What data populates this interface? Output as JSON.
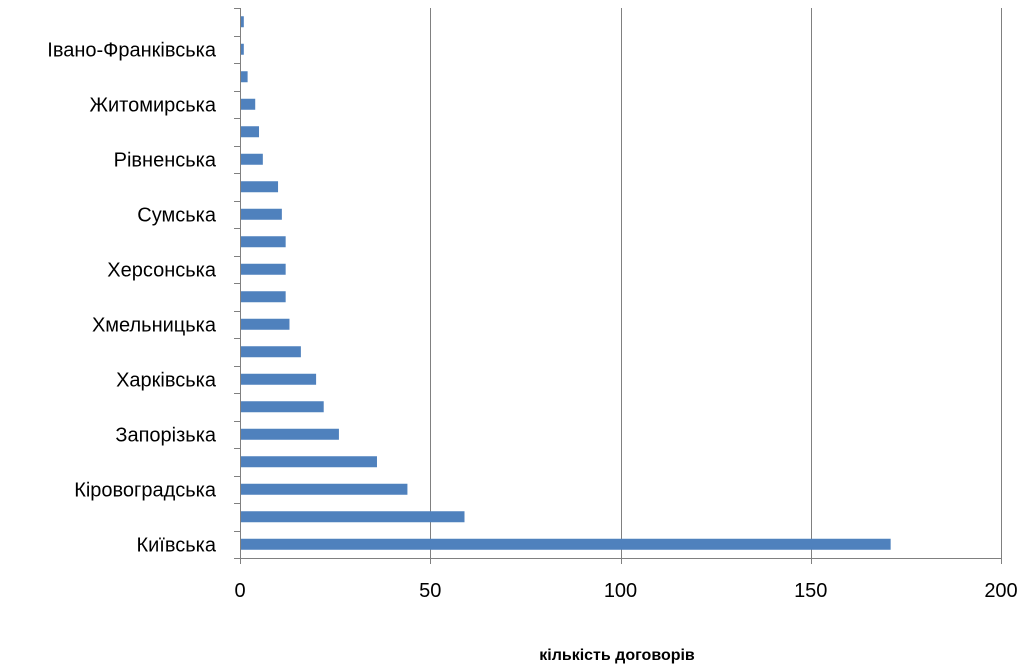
{
  "chart_data": {
    "type": "bar",
    "orientation": "horizontal",
    "categories": [
      "Київська",
      "",
      "Кіровоградська",
      "",
      "Запорізька",
      "",
      "Харківська",
      "",
      "Хмельницька",
      "",
      "Херсонська",
      "",
      "Сумська",
      "",
      "Рівненська",
      "",
      "Житомирська",
      "",
      "Івано-Франківська",
      ""
    ],
    "values": [
      171,
      59,
      44,
      36,
      26,
      22,
      20,
      16,
      13,
      12,
      12,
      12,
      11,
      10,
      6,
      5,
      4,
      2,
      1,
      1
    ],
    "xlabel": "кількість договорів",
    "ylabel": "",
    "xlim": [
      0,
      200
    ],
    "x_ticks": [
      0,
      50,
      100,
      150,
      200
    ],
    "grid": "vertical gridlines at major x ticks",
    "legend": "none",
    "colors": {
      "bar": "#4F81BD",
      "gridline": "#808080",
      "axis": "#808080"
    }
  }
}
